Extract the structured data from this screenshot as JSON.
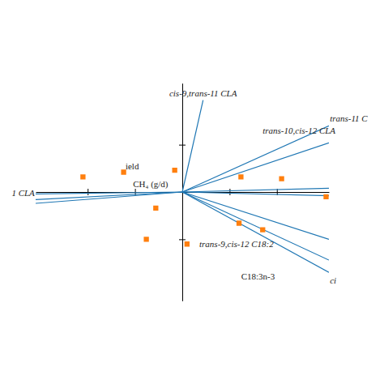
{
  "chart_data": {
    "type": "biplot",
    "xlim": [
      -1.55,
      1.55
    ],
    "ylim": [
      -1.15,
      1.15
    ],
    "xticks": [
      -1.0,
      -0.5,
      0.5,
      1.0
    ],
    "yticks": [
      -0.5,
      0.5
    ],
    "tick_labels": false,
    "marker": "square",
    "vectors": [
      {
        "x1": 0.0,
        "y1": 0.0,
        "x2": 0.22,
        "y2": 0.97
      },
      {
        "x1": 0.0,
        "y1": 0.0,
        "x2": 1.55,
        "y2": 0.7
      },
      {
        "x1": 0.0,
        "y1": 0.0,
        "x2": 1.55,
        "y2": 0.52
      },
      {
        "x1": 0.0,
        "y1": 0.0,
        "x2": 1.55,
        "y2": 0.04
      },
      {
        "x1": 0.0,
        "y1": 0.0,
        "x2": 1.55,
        "y2": -0.04
      },
      {
        "x1": 0.0,
        "y1": 0.0,
        "x2": 1.55,
        "y2": -0.5
      },
      {
        "x1": 0.0,
        "y1": 0.0,
        "x2": 1.55,
        "y2": -0.72
      },
      {
        "x1": 0.0,
        "y1": 0.0,
        "x2": 1.55,
        "y2": -0.85
      },
      {
        "x1": 0.0,
        "y1": 0.0,
        "x2": -1.55,
        "y2": -0.08
      },
      {
        "x1": 0.0,
        "y1": 0.0,
        "x2": -1.55,
        "y2": -0.12
      },
      {
        "x1": 0.0,
        "y1": 0.0,
        "x2": -1.55,
        "y2": -0.02
      }
    ],
    "points": {
      "x": [
        -1.05,
        -0.62,
        -0.08,
        0.62,
        1.05,
        -0.28,
        0.6,
        0.85,
        -0.38,
        0.05,
        1.52
      ],
      "y": [
        0.16,
        0.21,
        0.23,
        0.16,
        0.14,
        -0.17,
        -0.33,
        -0.4,
        -0.5,
        -0.55,
        -0.05
      ]
    },
    "annotations": [
      {
        "x": 0.22,
        "y": 0.99,
        "text": "cis-9,trans-11 CLA"
      },
      {
        "x": 1.56,
        "y": 0.73,
        "text": "trans-11 C"
      },
      {
        "x": 0.85,
        "y": 0.6,
        "text": "trans-10,cis-12 CLA"
      },
      {
        "x": -0.6,
        "y": 0.22,
        "text": "ield"
      },
      {
        "x": -0.52,
        "y": 0.14,
        "text": "CH₄ (g/d)"
      },
      {
        "x": -1.56,
        "y": -0.02,
        "text": "1 CLA"
      },
      {
        "x": 0.18,
        "y": -0.5,
        "text": "trans-9,cis-12 C18:2"
      },
      {
        "x": 0.8,
        "y": -0.84,
        "text": "C18:3n-3"
      },
      {
        "x": 1.56,
        "y": -0.88,
        "text": "ci"
      }
    ]
  }
}
